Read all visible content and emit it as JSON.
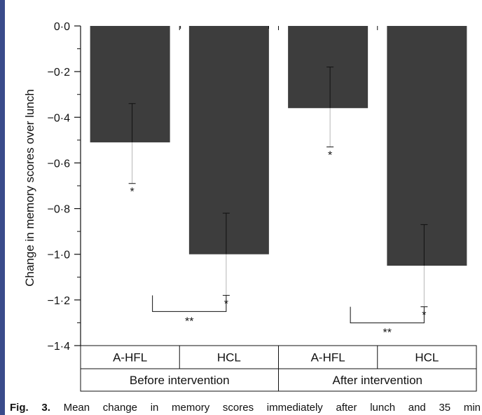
{
  "chart_data": {
    "type": "bar",
    "title": "",
    "xlabel": "",
    "ylabel": "Change in memory scores over lunch",
    "ylim": [
      -1.4,
      0.0
    ],
    "yticks": [
      "0·0",
      "−0·2",
      "−0·4",
      "−0·6",
      "−0·8",
      "−1·0",
      "−1·2",
      "−1·4"
    ],
    "bar_color": "#3d3d3d",
    "grid": false,
    "categories": [
      "A-HFL",
      "HCL",
      "A-HFL",
      "HCL"
    ],
    "groups": [
      "Before intervention",
      "After intervention"
    ],
    "bars": [
      {
        "group": "Before intervention",
        "category": "A-HFL",
        "value": -0.51,
        "error_low": -0.69,
        "error_high": -0.34,
        "significance": "*"
      },
      {
        "group": "Before intervention",
        "category": "HCL",
        "value": -1.0,
        "error_low": -1.18,
        "error_high": -0.82,
        "significance": "*"
      },
      {
        "group": "After intervention",
        "category": "A-HFL",
        "value": -0.36,
        "error_low": -0.53,
        "error_high": -0.18,
        "significance": "*"
      },
      {
        "group": "After intervention",
        "category": "HCL",
        "value": -1.05,
        "error_low": -1.23,
        "error_high": -0.87,
        "significance": "*"
      }
    ],
    "comparisons": [
      {
        "from": 0,
        "to": 1,
        "label": "**"
      },
      {
        "from": 2,
        "to": 3,
        "label": "**"
      }
    ]
  },
  "caption": {
    "label": "Fig. 3.",
    "text": "Mean change in memory scores immediately after lunch and 35 min"
  }
}
